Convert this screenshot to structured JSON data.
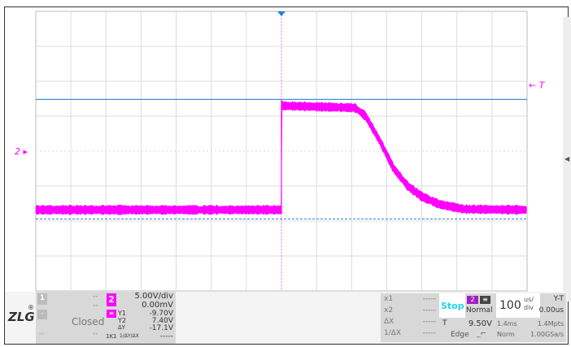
{
  "channel": {
    "id": "2",
    "color": "#ff00ff",
    "scale": "5.00V/div",
    "offset": "0.00mV",
    "marker": "2"
  },
  "trigger": {
    "marker": "T",
    "level": "9.50V",
    "type": "Edge",
    "status": "Stop",
    "mode": "Normal",
    "source": "2"
  },
  "timebase": {
    "value": "100",
    "unit_top": "us/",
    "unit_bottom": "div",
    "mode": "Y-T",
    "delay": "0.00us",
    "record": "1.4ms",
    "points": "1.4Mpts",
    "acq": "Norm",
    "rate": "1.00GSa/s"
  },
  "channel1": {
    "id": "1",
    "a": "--",
    "b": "--",
    "state": "Closed",
    "c": "--",
    "d": "--",
    "e": "-"
  },
  "cursors": {
    "y1_label": "Y1",
    "y1": "-9.70V",
    "y2_label": "Y2",
    "y2": "7.40V",
    "dy_label": "ΔY",
    "dy": "-17.1V",
    "inv_label": "1/ΔY/ΔX",
    "inv": "-----",
    "src": "1K1",
    "x1_label": "x1",
    "x1": "-----",
    "x2_label": "x2",
    "x2": "-----",
    "dx_label": "ΔX",
    "dx": "-----",
    "invx_label": "1/ΔX",
    "invx": "-----"
  },
  "logo": "ZLG",
  "colors": {
    "cursor": "#3a8fe0",
    "trace": "#ff00ff",
    "grid": "#dddddd"
  },
  "chart_data": {
    "type": "line",
    "x_unit": "us",
    "y_unit": "V",
    "xlim": [
      -700,
      700
    ],
    "ylim": [
      -20,
      20
    ],
    "grid": true,
    "series": [
      {
        "x": [
          -700,
          0,
          0,
          210,
          240,
          280,
          320,
          360,
          400,
          450,
          520,
          700
        ],
        "y": [
          -8.4,
          -8.4,
          6.5,
          6.2,
          5.0,
          1.5,
          -2.5,
          -5.0,
          -6.5,
          -7.6,
          -8.3,
          -8.4
        ]
      }
    ],
    "cursor_y1": -9.7,
    "cursor_y2": 7.4,
    "trigger_level": 9.5
  }
}
